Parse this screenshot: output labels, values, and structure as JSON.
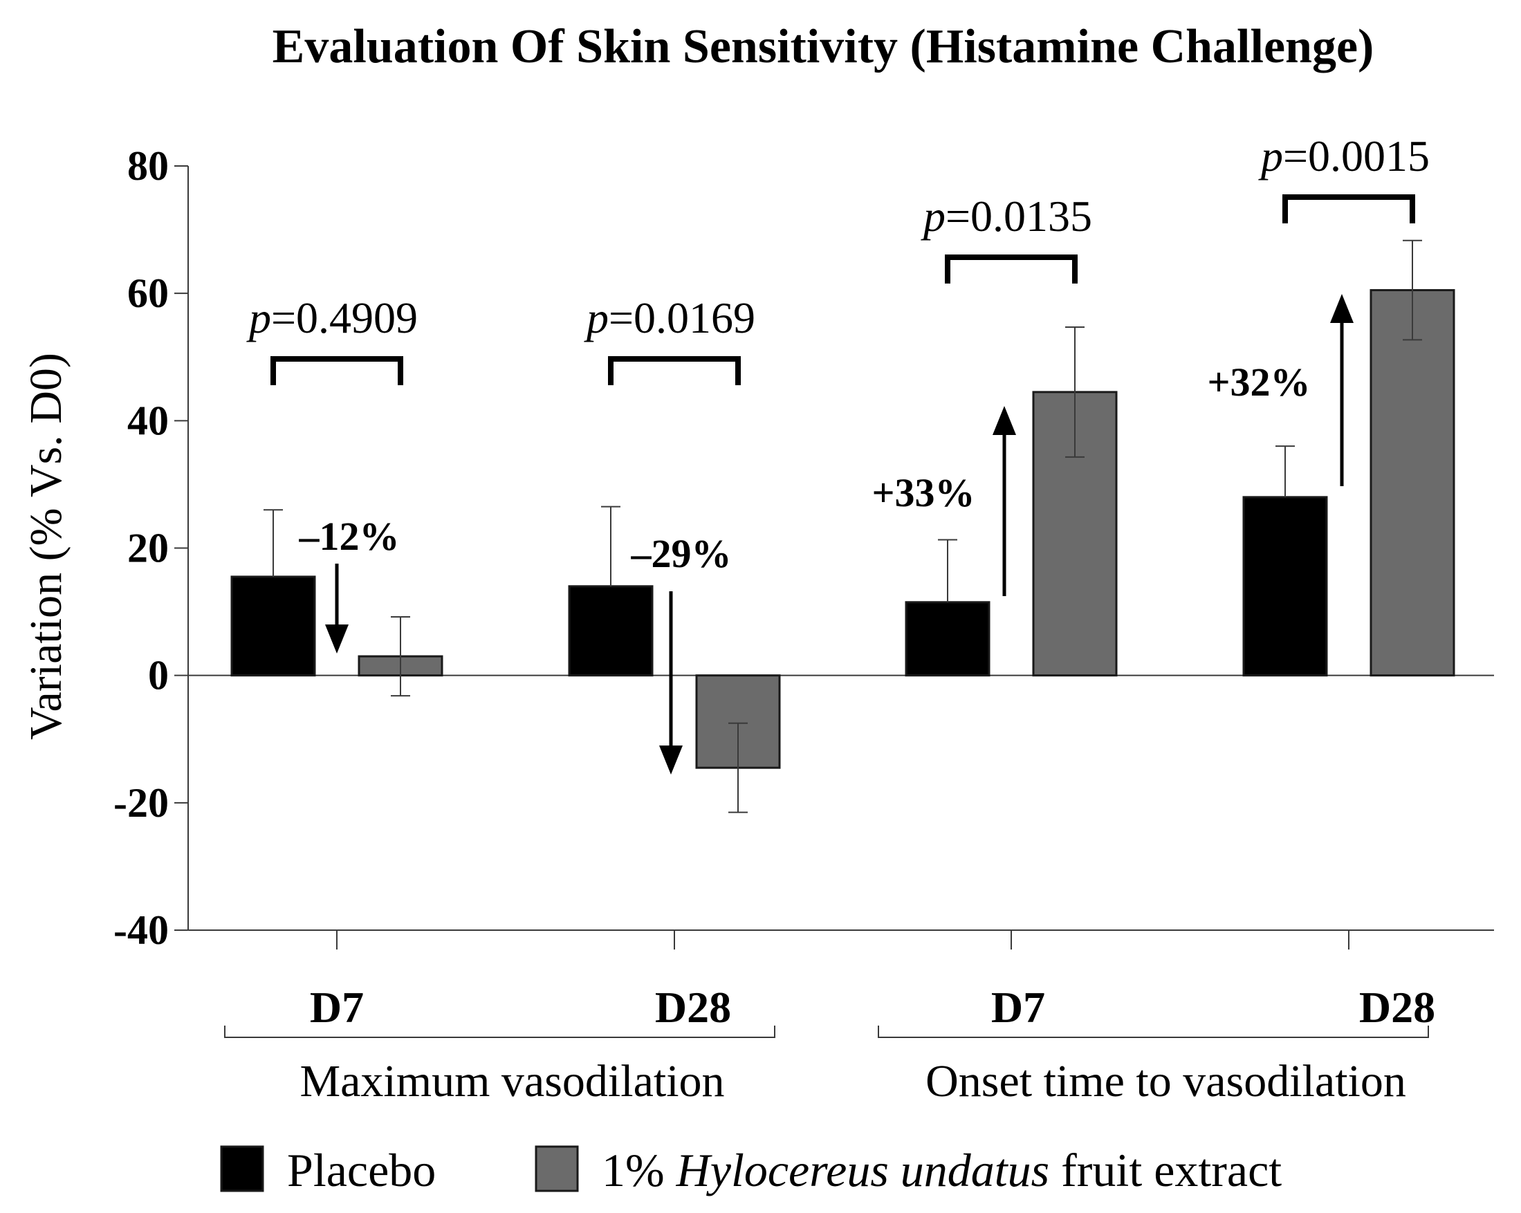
{
  "chart_data": {
    "type": "bar",
    "title": "Evaluation Of Skin Sensitivity (Histamine Challenge)",
    "ylabel": "Variation (% Vs. D0)",
    "ylim": [
      -40,
      80
    ],
    "yticks": [
      80,
      60,
      40,
      20,
      0,
      -20,
      -40
    ],
    "categories": [
      "D7",
      "D28",
      "D7",
      "D28"
    ],
    "groups": [
      {
        "label": "Maximum vasodilation",
        "categories": [
          0,
          1
        ]
      },
      {
        "label": "Onset time to vasodilation",
        "categories": [
          2,
          3
        ]
      }
    ],
    "series": [
      {
        "name": "Placebo",
        "color": "#000000",
        "values": [
          15.5,
          14.0,
          11.5,
          28.0
        ],
        "error": [
          10.5,
          12.5,
          9.8,
          8.0
        ]
      },
      {
        "name": "1% Hylocereus undatus fruit extract",
        "color": "#6b6b6b",
        "values": [
          3.0,
          -14.5,
          44.5,
          60.5
        ],
        "error": [
          6.2,
          7.0,
          10.2,
          7.8
        ]
      }
    ],
    "p_values": [
      {
        "prefix": "p",
        "value": "=0.4909"
      },
      {
        "prefix": "p",
        "value": "=0.0169"
      },
      {
        "prefix": "p",
        "value": "=0.0135"
      },
      {
        "prefix": "p",
        "value": "=0.0015"
      }
    ],
    "changes": [
      {
        "label": "–12%",
        "direction": "down"
      },
      {
        "label": "–29%",
        "direction": "down"
      },
      {
        "label": "+33%",
        "direction": "up"
      },
      {
        "label": "+32%",
        "direction": "up"
      }
    ],
    "legend": {
      "placement": "bottom",
      "entries": [
        {
          "text": "Placebo"
        },
        {
          "prefix": "1% ",
          "italic": "Hylocereus undatus",
          "suffix": " fruit extract"
        }
      ]
    },
    "grid": false
  }
}
